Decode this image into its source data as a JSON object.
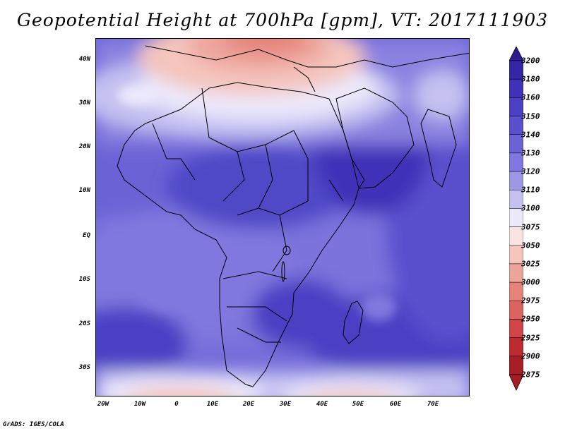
{
  "title": "Geopotential Height at 700hPa [gpm], VT: 2017111903",
  "footer": "GrADS: IGES/COLA",
  "map": {
    "region": "Africa, Middle East and Indian Ocean",
    "lon_range": [
      -23,
      80
    ],
    "lat_range": [
      -37,
      45
    ],
    "lat_labels": [
      "40N",
      "30N",
      "20N",
      "10N",
      "EQ",
      "10S",
      "20S",
      "30S"
    ],
    "lon_labels": [
      "20W",
      "10W",
      "0",
      "10E",
      "20E",
      "30E",
      "40E",
      "50E",
      "60E",
      "70E"
    ]
  },
  "legend": {
    "levels": [
      "3200",
      "3180",
      "3160",
      "3150",
      "3140",
      "3130",
      "3120",
      "3110",
      "3100",
      "3075",
      "3050",
      "3025",
      "3000",
      "2975",
      "2950",
      "2925",
      "2900",
      "2875"
    ],
    "colors": [
      "#2a1b8f",
      "#3526a6",
      "#3f31b8",
      "#4b3fc4",
      "#5a4fcd",
      "#6b62d6",
      "#8078de",
      "#9d97e6",
      "#c4c1f1",
      "#ece9fb",
      "#f9e4e1",
      "#f4c4bd",
      "#eda49b",
      "#e5837a",
      "#dd6360",
      "#d14447",
      "#bd2a30",
      "#a81c24"
    ]
  }
}
